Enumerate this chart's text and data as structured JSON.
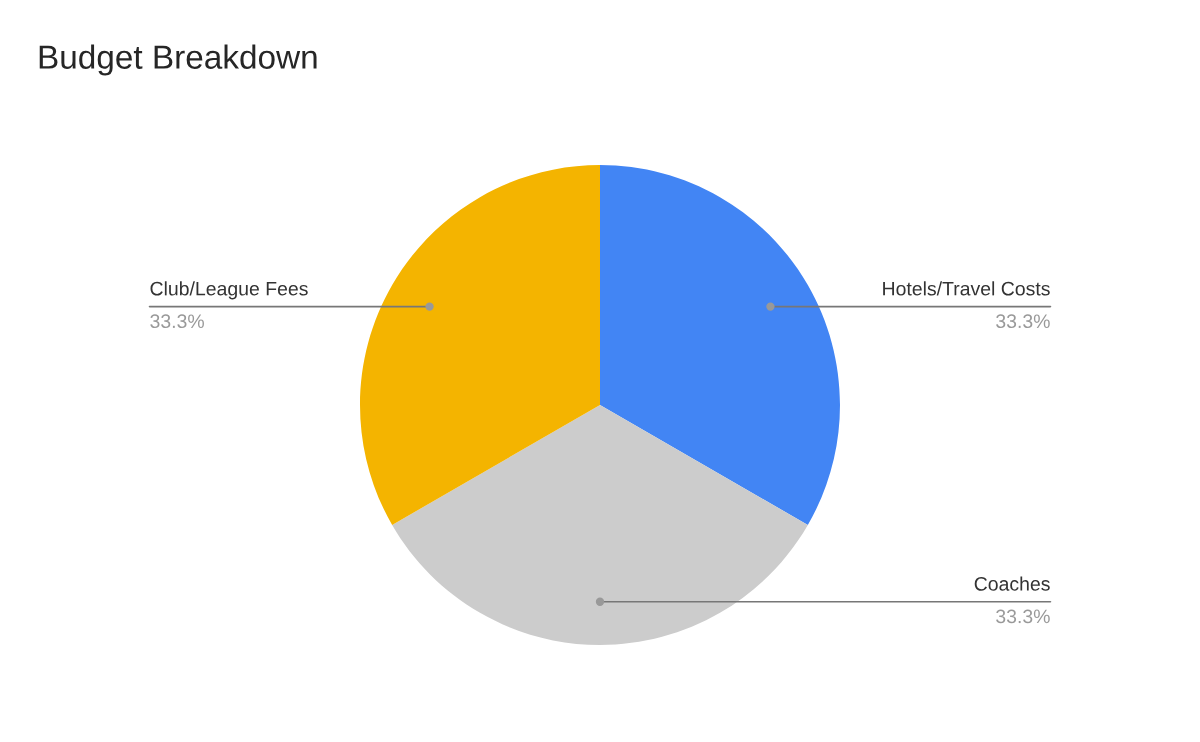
{
  "chart_data": {
    "type": "pie",
    "title": "Budget Breakdown",
    "categories": [
      "Hotels/Travel Costs",
      "Coaches",
      "Club/League Fees"
    ],
    "values": [
      33.3,
      33.3,
      33.3
    ],
    "colors": [
      "#4285f4",
      "#cccccc",
      "#f4b400"
    ],
    "value_labels": [
      "33.3%",
      "33.3%",
      "33.3%"
    ]
  }
}
